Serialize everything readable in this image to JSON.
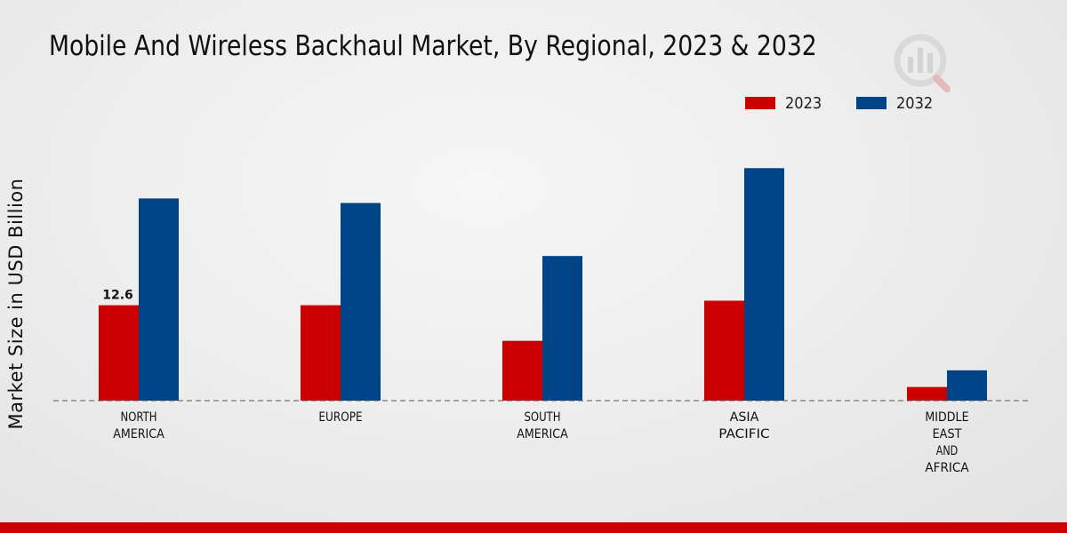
{
  "chart_data": {
    "type": "bar",
    "title": "Mobile And Wireless Backhaul Market, By Regional, 2023 & 2032",
    "xlabel": "",
    "ylabel": "Market Size in USD Billion",
    "ylim": [
      0,
      40
    ],
    "grid": false,
    "legend_position": "top-right",
    "categories": [
      [
        "NORTH",
        "AMERICA"
      ],
      [
        "EUROPE"
      ],
      [
        "SOUTH",
        "AMERICA"
      ],
      [
        "ASIA",
        "PACIFIC"
      ],
      [
        "MIDDLE",
        "EAST",
        "AND",
        "AFRICA"
      ]
    ],
    "series": [
      {
        "name": "2023",
        "color": "#cc0000",
        "values": [
          12.6,
          12.6,
          7.9,
          13.2,
          1.8
        ]
      },
      {
        "name": "2032",
        "color": "#004488",
        "values": [
          26.7,
          26.1,
          19.1,
          30.7,
          4.0
        ]
      }
    ],
    "data_labels": [
      {
        "series": 0,
        "index": 0,
        "text": "12.6"
      }
    ]
  }
}
